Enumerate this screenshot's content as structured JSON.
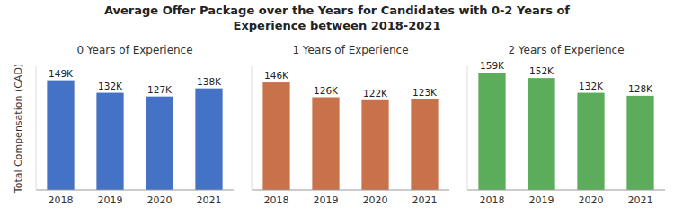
{
  "title": "Average Offer Package over the Years for Candidates with 0-2 Years of\nExperience between 2018-2021",
  "chart_data": [
    {
      "type": "bar",
      "title": "0 Years of Experience",
      "ylabel": "Total Compensation (CAD)",
      "categories": [
        "2018",
        "2019",
        "2020",
        "2021"
      ],
      "values": [
        149000,
        132000,
        127000,
        138000
      ],
      "value_labels": [
        "149K",
        "132K",
        "127K",
        "138K"
      ],
      "color": "#4472C4",
      "ylim": [
        0,
        168000
      ],
      "data_labels": true,
      "tick_labels": "x",
      "grid": false
    },
    {
      "type": "bar",
      "title": "1 Years of Experience",
      "categories": [
        "2018",
        "2019",
        "2020",
        "2021"
      ],
      "values": [
        146000,
        126000,
        122000,
        123000
      ],
      "value_labels": [
        "146K",
        "126K",
        "122K",
        "123K"
      ],
      "color": "#C9714A",
      "ylim": [
        0,
        168000
      ],
      "data_labels": true,
      "tick_labels": "x",
      "grid": false
    },
    {
      "type": "bar",
      "title": "2 Years of Experience",
      "categories": [
        "2018",
        "2019",
        "2020",
        "2021"
      ],
      "values": [
        159000,
        152000,
        132000,
        128000
      ],
      "value_labels": [
        "159K",
        "152K",
        "132K",
        "128K"
      ],
      "color": "#5BAD5B",
      "ylim": [
        0,
        168000
      ],
      "data_labels": true,
      "tick_labels": "x",
      "grid": false
    }
  ]
}
